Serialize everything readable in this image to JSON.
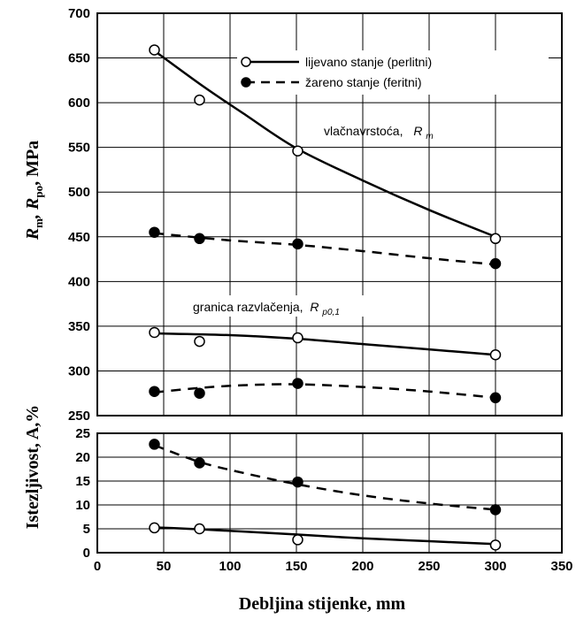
{
  "chart_data": [
    {
      "type": "line",
      "panel": "strength",
      "ylabel_parts": [
        "R",
        "m",
        ", R",
        "po",
        ", MPa"
      ],
      "ylim": [
        250,
        700
      ],
      "xlim": [
        0,
        350
      ],
      "yticks": [
        "250",
        "300",
        "350",
        "400",
        "450",
        "500",
        "550",
        "600",
        "650",
        "700"
      ],
      "grid": true,
      "legend": {
        "placement": "top-right",
        "entries": [
          "lijevano stanje (perlitni)",
          "žareno stanje (feritni)"
        ]
      },
      "annotations": [
        {
          "text": "vlačnavrstoća,",
          "symbol": "R",
          "sub": "m"
        },
        {
          "text": "granica razvlačenja,",
          "symbol": "R",
          "sub": "p0,1"
        }
      ],
      "series": [
        {
          "group": "Rm",
          "style": "solid",
          "marker": "open",
          "points": [
            [
              43,
              659
            ],
            [
              77,
              603
            ],
            [
              151,
              546
            ],
            [
              300,
              448
            ]
          ],
          "curve": [
            [
              43,
              658
            ],
            [
              80,
              618
            ],
            [
              110,
              588
            ],
            [
              150,
              549
            ],
            [
              200,
              513
            ],
            [
              250,
              480
            ],
            [
              300,
              450
            ]
          ]
        },
        {
          "group": "Rm",
          "style": "dashed",
          "marker": "filled",
          "points": [
            [
              43,
              455
            ],
            [
              77,
              448
            ],
            [
              151,
              442
            ],
            [
              300,
              420
            ]
          ],
          "curve": [
            [
              43,
              454
            ],
            [
              100,
              446
            ],
            [
              150,
              441
            ],
            [
              200,
              434
            ],
            [
              250,
              426
            ],
            [
              300,
              419
            ]
          ]
        },
        {
          "group": "Rp",
          "style": "solid",
          "marker": "open",
          "points": [
            [
              43,
              343
            ],
            [
              77,
              333
            ],
            [
              151,
              337
            ],
            [
              300,
              318
            ]
          ],
          "curve": [
            [
              43,
              342
            ],
            [
              100,
              340
            ],
            [
              150,
              336
            ],
            [
              200,
              330
            ],
            [
              250,
              324
            ],
            [
              300,
              318
            ]
          ]
        },
        {
          "group": "Rp",
          "style": "dashed",
          "marker": "filled",
          "points": [
            [
              43,
              277
            ],
            [
              77,
              275
            ],
            [
              151,
              286
            ],
            [
              300,
              270
            ]
          ],
          "curve": [
            [
              43,
              276
            ],
            [
              77,
              281
            ],
            [
              110,
              284
            ],
            [
              151,
              285
            ],
            [
              200,
              282
            ],
            [
              250,
              277
            ],
            [
              300,
              270
            ]
          ]
        }
      ]
    },
    {
      "type": "line",
      "panel": "elongation",
      "ylabel": "Istezljivost, A,%",
      "xlabel": "Debljina stijenke, mm",
      "ylim": [
        0,
        25
      ],
      "xlim": [
        0,
        350
      ],
      "yticks": [
        "0",
        "5",
        "10",
        "15",
        "20",
        "25"
      ],
      "xticks": [
        "0",
        "50",
        "100",
        "150",
        "200",
        "250",
        "300",
        "350"
      ],
      "grid": true,
      "series": [
        {
          "style": "dashed",
          "marker": "filled",
          "points": [
            [
              43,
              22.7
            ],
            [
              77,
              18.8
            ],
            [
              151,
              14.8
            ],
            [
              300,
              9.0
            ]
          ],
          "curve": [
            [
              43,
              22.5
            ],
            [
              77,
              19.0
            ],
            [
              110,
              16.7
            ],
            [
              151,
              14.3
            ],
            [
              200,
              12.0
            ],
            [
              250,
              10.3
            ],
            [
              300,
              9.0
            ]
          ]
        },
        {
          "style": "solid",
          "marker": "open",
          "points": [
            [
              43,
              5.2
            ],
            [
              77,
              5.0
            ],
            [
              151,
              2.7
            ],
            [
              300,
              1.6
            ]
          ],
          "curve": [
            [
              43,
              5.3
            ],
            [
              77,
              4.9
            ],
            [
              151,
              3.8
            ],
            [
              200,
              3.0
            ],
            [
              250,
              2.4
            ],
            [
              300,
              1.8
            ]
          ]
        }
      ]
    }
  ]
}
